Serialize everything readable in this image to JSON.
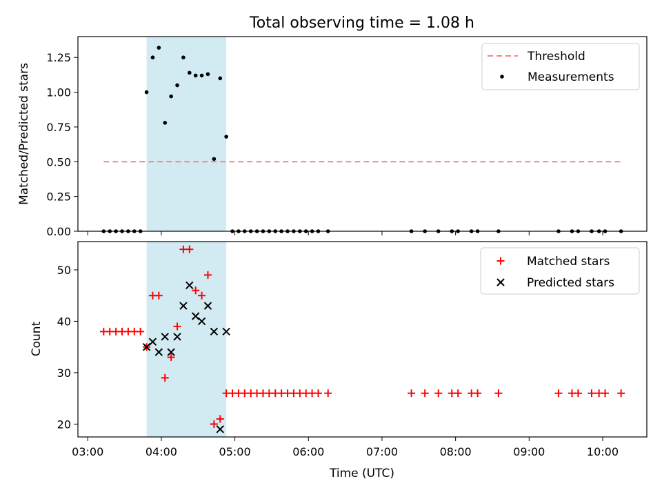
{
  "chart_data": {
    "title": "Total observing time = 1.08 h",
    "xlabel": "Time (UTC)",
    "xtick_labels": [
      "03:00",
      "04:00",
      "05:00",
      "06:00",
      "07:00",
      "08:00",
      "09:00",
      "10:00"
    ],
    "xlim": [
      "03:00",
      "10:36"
    ],
    "shaded_region": {
      "x_start": "03:48",
      "x_end": "04:53",
      "color": "#add8e6"
    },
    "panels": [
      {
        "type": "scatter",
        "ylabel": "Matched/Predicted stars",
        "ylim": [
          0,
          1.4
        ],
        "yticks": [
          "0.00",
          "0.25",
          "0.50",
          "0.75",
          "1.00",
          "1.25"
        ],
        "legend_position": "upper right",
        "threshold": {
          "name": "Threshold",
          "value": 0.5,
          "x_start": "03:13",
          "x_end": "10:15",
          "color": "#ff7f7f",
          "style": "dashed"
        },
        "series": [
          {
            "name": "Measurements",
            "color": "#000000",
            "marker": "dot",
            "x": [
              "03:13",
              "03:18",
              "03:23",
              "03:28",
              "03:33",
              "03:38",
              "03:43",
              "03:48",
              "03:53",
              "03:58",
              "04:03",
              "04:08",
              "04:13",
              "04:18",
              "04:23",
              "04:28",
              "04:33",
              "04:38",
              "04:43",
              "04:48",
              "04:53",
              "04:58",
              "05:03",
              "05:08",
              "05:13",
              "05:18",
              "05:23",
              "05:28",
              "05:33",
              "05:38",
              "05:43",
              "05:48",
              "05:53",
              "05:58",
              "06:03",
              "06:08",
              "06:16",
              "07:24",
              "07:35",
              "07:46",
              "07:57",
              "08:02",
              "08:13",
              "08:18",
              "08:35",
              "09:24",
              "09:35",
              "09:40",
              "09:51",
              "09:57",
              "10:02",
              "10:15"
            ],
            "y": [
              0,
              0,
              0,
              0,
              0,
              0,
              0,
              1.0,
              1.25,
              1.32,
              0.78,
              0.97,
              1.05,
              1.25,
              1.14,
              1.12,
              1.12,
              1.13,
              0.52,
              1.1,
              0.68,
              0,
              0,
              0,
              0,
              0,
              0,
              0,
              0,
              0,
              0,
              0,
              0,
              0,
              0,
              0,
              0,
              0,
              0,
              0,
              0,
              0,
              0,
              0,
              0,
              0,
              0,
              0,
              0,
              0,
              0,
              0
            ]
          }
        ]
      },
      {
        "type": "scatter",
        "ylabel": "Count",
        "ylim": [
          17.5,
          55.5
        ],
        "yticks": [
          "20",
          "30",
          "40",
          "50"
        ],
        "legend_position": "upper right",
        "series": [
          {
            "name": "Matched stars",
            "color": "#ff0000",
            "marker": "plus",
            "x": [
              "03:13",
              "03:18",
              "03:23",
              "03:28",
              "03:33",
              "03:38",
              "03:43",
              "03:48",
              "03:53",
              "03:58",
              "04:03",
              "04:08",
              "04:13",
              "04:18",
              "04:23",
              "04:28",
              "04:33",
              "04:38",
              "04:43",
              "04:48",
              "04:53",
              "04:58",
              "05:03",
              "05:08",
              "05:13",
              "05:18",
              "05:23",
              "05:28",
              "05:33",
              "05:38",
              "05:43",
              "05:48",
              "05:53",
              "05:58",
              "06:03",
              "06:08",
              "06:16",
              "07:24",
              "07:35",
              "07:46",
              "07:57",
              "08:02",
              "08:13",
              "08:18",
              "08:35",
              "09:24",
              "09:35",
              "09:40",
              "09:51",
              "09:57",
              "10:02",
              "10:15"
            ],
            "y": [
              38,
              38,
              38,
              38,
              38,
              38,
              38,
              35,
              45,
              45,
              29,
              33,
              39,
              54,
              54,
              46,
              45,
              49,
              20,
              21,
              26,
              26,
              26,
              26,
              26,
              26,
              26,
              26,
              26,
              26,
              26,
              26,
              26,
              26,
              26,
              26,
              26,
              26,
              26,
              26,
              26,
              26,
              26,
              26,
              26,
              26,
              26,
              26,
              26,
              26,
              26,
              26
            ]
          },
          {
            "name": "Predicted stars",
            "color": "#000000",
            "marker": "x",
            "x": [
              "03:48",
              "03:53",
              "03:58",
              "04:03",
              "04:08",
              "04:13",
              "04:18",
              "04:23",
              "04:28",
              "04:33",
              "04:38",
              "04:43",
              "04:48",
              "04:53"
            ],
            "y": [
              35,
              36,
              34,
              37,
              34,
              37,
              43,
              47,
              41,
              40,
              43,
              38,
              19,
              38
            ]
          }
        ]
      }
    ]
  }
}
